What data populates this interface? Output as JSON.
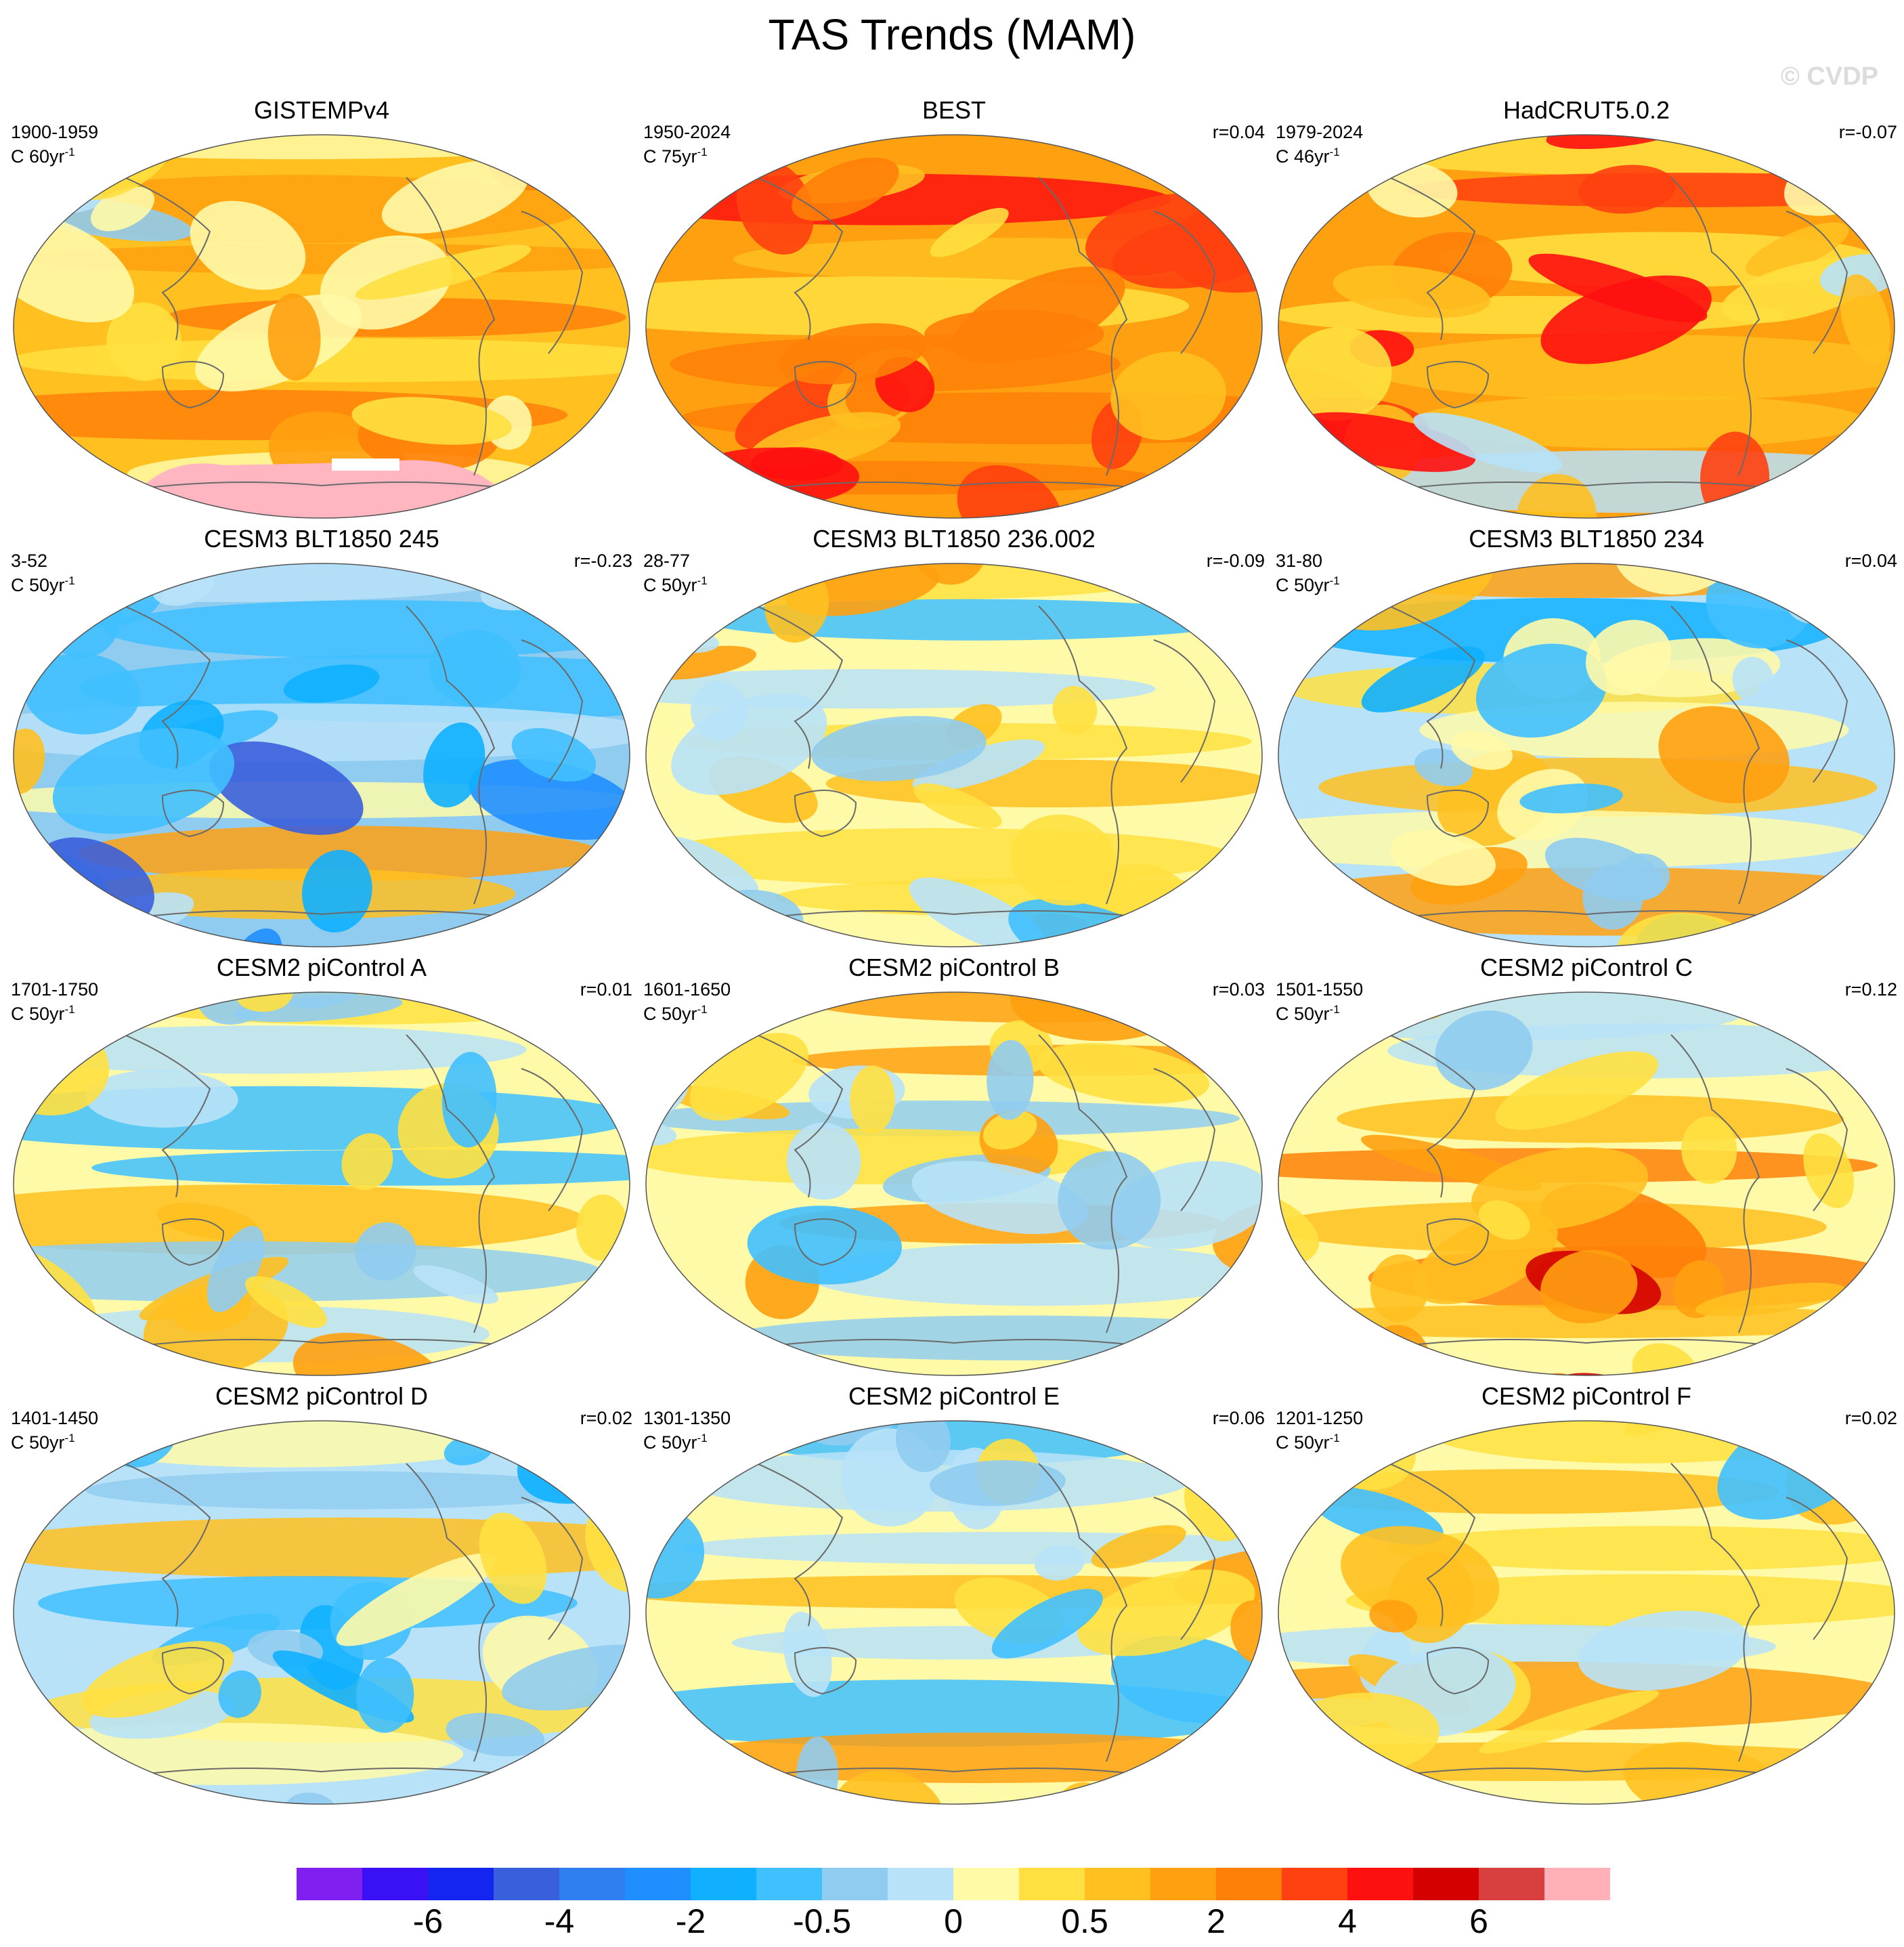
{
  "figure": {
    "title": "TAS Trends (MAM)",
    "watermark": "© CVDP"
  },
  "panels": [
    {
      "title": "GISTEMPv4",
      "period": "1900-1959",
      "units_base": "C 60yr",
      "units_exp": "-1",
      "r": "",
      "scheme": "obs_warm",
      "missing_antarctica": true
    },
    {
      "title": "BEST",
      "period": "1950-2024",
      "units_base": "C 75yr",
      "units_exp": "-1",
      "r": "r=0.04",
      "scheme": "strong_warm"
    },
    {
      "title": "HadCRUT5.0.2",
      "period": "1979-2024",
      "units_base": "C 46yr",
      "units_exp": "-1",
      "r": "r=-0.07",
      "scheme": "strong_warm2"
    },
    {
      "title": "CESM3 BLT1850 245",
      "period": "3-52",
      "units_base": "C 50yr",
      "units_exp": "-1",
      "r": "r=-0.23",
      "scheme": "cool"
    },
    {
      "title": "CESM3 BLT1850 236.002",
      "period": "28-77",
      "units_base": "C 50yr",
      "units_exp": "-1",
      "r": "r=-0.09",
      "scheme": "mixed"
    },
    {
      "title": "CESM3 BLT1850 234",
      "period": "31-80",
      "units_base": "C 50yr",
      "units_exp": "-1",
      "r": "r=0.04",
      "scheme": "mixed_cool"
    },
    {
      "title": "CESM2 piControl A",
      "period": "1701-1750",
      "units_base": "C 50yr",
      "units_exp": "-1",
      "r": "r=0.01",
      "scheme": "mixed"
    },
    {
      "title": "CESM2 piControl B",
      "period": "1601-1650",
      "units_base": "C 50yr",
      "units_exp": "-1",
      "r": "r=0.03",
      "scheme": "mixed"
    },
    {
      "title": "CESM2 piControl C",
      "period": "1501-1550",
      "units_base": "C 50yr",
      "units_exp": "-1",
      "r": "r=0.12",
      "scheme": "mixed_warm"
    },
    {
      "title": "CESM2 piControl D",
      "period": "1401-1450",
      "units_base": "C 50yr",
      "units_exp": "-1",
      "r": "r=0.02",
      "scheme": "mixed_cool"
    },
    {
      "title": "CESM2 piControl E",
      "period": "1301-1350",
      "units_base": "C 50yr",
      "units_exp": "-1",
      "r": "r=0.06",
      "scheme": "mixed"
    },
    {
      "title": "CESM2 piControl F",
      "period": "1201-1250",
      "units_base": "C 50yr",
      "units_exp": "-1",
      "r": "r=0.02",
      "scheme": "mixed"
    }
  ],
  "colorbar": {
    "colors": [
      "#7f1ff0",
      "#3a10f5",
      "#1425f0",
      "#3a5fdc",
      "#2f7ff0",
      "#1f8fff",
      "#10b0ff",
      "#40c0ff",
      "#90ccf0",
      "#b8e2f8",
      "#fffaa8",
      "#ffe040",
      "#ffc020",
      "#ffa010",
      "#ff8008",
      "#ff4010",
      "#ff1010",
      "#d40000",
      "#d84040",
      "#ffb0b8"
    ],
    "labels": [
      "-6",
      "-4",
      "-2",
      "-0.5",
      "0",
      "0.5",
      "2",
      "4",
      "6"
    ],
    "label_positions": [
      2,
      4,
      6,
      8,
      10,
      12,
      14,
      16,
      18
    ]
  },
  "palette": {
    "coast": "#6a6a6a",
    "missing": "#ffffff",
    "antarctic_missing": "#ffb6c1"
  }
}
